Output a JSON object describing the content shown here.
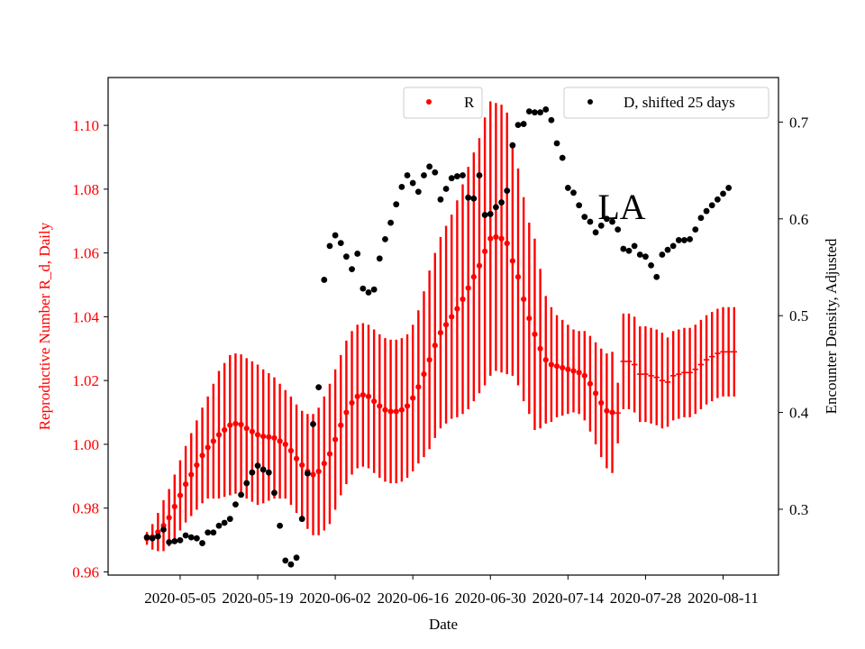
{
  "chart_data": {
    "type": "scatter",
    "xlabel": "Date",
    "ylabel_left": "Reproductive Number R_d, Daily",
    "ylabel_right": "Encounter Density, Adjusted",
    "annotation": "LA",
    "x_ticks": [
      "2020-05-05",
      "2020-05-19",
      "2020-06-02",
      "2020-06-16",
      "2020-06-30",
      "2020-07-14",
      "2020-07-28",
      "2020-08-11"
    ],
    "y_left_ticks": [
      "0.96",
      "0.98",
      "1.00",
      "1.02",
      "1.04",
      "1.06",
      "1.08",
      "1.10"
    ],
    "y_right_ticks": [
      "0.3",
      "0.4",
      "0.5",
      "0.6",
      "0.7"
    ],
    "y_left_range": [
      0.959,
      1.115
    ],
    "y_right_range": [
      0.232,
      0.746
    ],
    "x_range": [
      "2020-04-22",
      "2020-08-21"
    ],
    "grid": false,
    "colors": {
      "r_series": "#ff0000",
      "d_series": "#000000",
      "left_axis": "#ff0000",
      "right_axis": "#000000"
    },
    "legends": [
      {
        "label": "R",
        "color": "#ff0000",
        "placement": "top-center"
      },
      {
        "label": "D, shifted 25 days",
        "color": "#000000",
        "placement": "top-right"
      }
    ],
    "series": [
      {
        "name": "R",
        "axis": "left",
        "x": [
          "2020-04-29",
          "2020-04-30",
          "2020-05-01",
          "2020-05-02",
          "2020-05-03",
          "2020-05-04",
          "2020-05-05",
          "2020-05-06",
          "2020-05-07",
          "2020-05-08",
          "2020-05-09",
          "2020-05-10",
          "2020-05-11",
          "2020-05-12",
          "2020-05-13",
          "2020-05-14",
          "2020-05-15",
          "2020-05-16",
          "2020-05-17",
          "2020-05-18",
          "2020-05-19",
          "2020-05-20",
          "2020-05-21",
          "2020-05-22",
          "2020-05-23",
          "2020-05-24",
          "2020-05-25",
          "2020-05-26",
          "2020-05-27",
          "2020-05-28",
          "2020-05-29",
          "2020-05-30",
          "2020-05-31",
          "2020-06-01",
          "2020-06-02",
          "2020-06-03",
          "2020-06-04",
          "2020-06-05",
          "2020-06-06",
          "2020-06-07",
          "2020-06-08",
          "2020-06-09",
          "2020-06-10",
          "2020-06-11",
          "2020-06-12",
          "2020-06-13",
          "2020-06-14",
          "2020-06-15",
          "2020-06-16",
          "2020-06-17",
          "2020-06-18",
          "2020-06-19",
          "2020-06-20",
          "2020-06-21",
          "2020-06-22",
          "2020-06-23",
          "2020-06-24",
          "2020-06-25",
          "2020-06-26",
          "2020-06-27",
          "2020-06-28",
          "2020-06-29",
          "2020-06-30",
          "2020-07-01",
          "2020-07-02",
          "2020-07-03",
          "2020-07-04",
          "2020-07-05",
          "2020-07-06",
          "2020-07-07",
          "2020-07-08",
          "2020-07-09",
          "2020-07-10",
          "2020-07-11",
          "2020-07-12",
          "2020-07-13",
          "2020-07-14",
          "2020-07-15",
          "2020-07-16",
          "2020-07-17",
          "2020-07-18",
          "2020-07-19",
          "2020-07-20",
          "2020-07-21",
          "2020-07-22",
          "2020-07-23",
          "2020-07-24",
          "2020-07-25",
          "2020-07-26",
          "2020-07-27",
          "2020-07-28",
          "2020-07-29",
          "2020-07-30",
          "2020-07-31",
          "2020-08-01",
          "2020-08-02",
          "2020-08-03",
          "2020-08-04",
          "2020-08-05",
          "2020-08-06",
          "2020-08-07",
          "2020-08-08",
          "2020-08-09",
          "2020-08-10",
          "2020-08-11",
          "2020-08-12",
          "2020-08-13"
        ],
        "y": [
          0.9705,
          0.971,
          0.9725,
          0.9745,
          0.977,
          0.9805,
          0.984,
          0.9875,
          0.9905,
          0.9935,
          0.9965,
          0.999,
          1.001,
          1.003,
          1.0045,
          1.006,
          1.0065,
          1.0062,
          1.005,
          1.004,
          1.003,
          1.0025,
          1.0023,
          1.002,
          1.001,
          1.0,
          0.998,
          0.9955,
          0.9935,
          0.9915,
          0.9905,
          0.9915,
          0.994,
          0.997,
          1.0015,
          1.006,
          1.01,
          1.013,
          1.015,
          1.0155,
          1.015,
          1.0135,
          1.012,
          1.0108,
          1.0103,
          1.0103,
          1.0108,
          1.012,
          1.0145,
          1.018,
          1.022,
          1.0265,
          1.031,
          1.035,
          1.0375,
          1.04,
          1.0425,
          1.0455,
          1.049,
          1.0525,
          1.056,
          1.0605,
          1.0645,
          1.065,
          1.0645,
          1.063,
          1.0575,
          1.0525,
          1.0455,
          1.0395,
          1.0345,
          1.03,
          1.0265,
          1.025,
          1.0245,
          1.024,
          1.0235,
          1.023,
          1.0225,
          1.0215,
          1.019,
          1.016,
          1.013,
          1.0105,
          1.01,
          1.0098,
          1.026,
          1.026,
          1.025,
          1.022,
          1.022,
          1.0215,
          1.021,
          1.02,
          1.0195,
          1.0215,
          1.022,
          1.0225,
          1.0225,
          1.0235,
          1.025,
          1.0265,
          1.0275,
          1.0285,
          1.029,
          1.029,
          1.029
        ],
        "err": [
          0.002,
          0.004,
          0.006,
          0.008,
          0.009,
          0.01,
          0.011,
          0.012,
          0.013,
          0.014,
          0.015,
          0.016,
          0.018,
          0.02,
          0.021,
          0.022,
          0.022,
          0.022,
          0.022,
          0.022,
          0.022,
          0.021,
          0.02,
          0.019,
          0.018,
          0.017,
          0.017,
          0.017,
          0.017,
          0.018,
          0.019,
          0.02,
          0.021,
          0.022,
          0.022,
          0.022,
          0.0225,
          0.0225,
          0.0225,
          0.0225,
          0.0225,
          0.0225,
          0.0225,
          0.0225,
          0.0225,
          0.0225,
          0.0225,
          0.0225,
          0.023,
          0.024,
          0.026,
          0.028,
          0.029,
          0.03,
          0.031,
          0.032,
          0.034,
          0.036,
          0.038,
          0.039,
          0.04,
          0.042,
          0.043,
          0.042,
          0.042,
          0.041,
          0.036,
          0.034,
          0.032,
          0.03,
          0.03,
          0.025,
          0.02,
          0.018,
          0.016,
          0.015,
          0.014,
          0.013,
          0.013,
          0.014,
          0.015,
          0.016,
          0.017,
          0.018,
          0.019,
          0.0095,
          0.015,
          0.015,
          0.015,
          0.015,
          0.015,
          0.015,
          0.015,
          0.015,
          0.014,
          0.014,
          0.014,
          0.014,
          0.014,
          0.014,
          0.014,
          0.014,
          0.014,
          0.014,
          0.014,
          0.014,
          0.014
        ],
        "err_outlined_from_index": 85
      },
      {
        "name": "D, shifted 25 days",
        "axis": "right",
        "x": [
          "2020-04-29",
          "2020-04-30",
          "2020-05-01",
          "2020-05-02",
          "2020-05-03",
          "2020-05-04",
          "2020-05-05",
          "2020-05-06",
          "2020-05-07",
          "2020-05-08",
          "2020-05-09",
          "2020-05-10",
          "2020-05-11",
          "2020-05-12",
          "2020-05-13",
          "2020-05-14",
          "2020-05-15",
          "2020-05-16",
          "2020-05-17",
          "2020-05-18",
          "2020-05-19",
          "2020-05-20",
          "2020-05-21",
          "2020-05-22",
          "2020-05-23",
          "2020-05-24",
          "2020-05-25",
          "2020-05-26",
          "2020-05-27",
          "2020-05-28",
          "2020-05-29",
          "2020-05-30",
          "2020-05-31",
          "2020-06-01",
          "2020-06-02",
          "2020-06-03",
          "2020-06-04",
          "2020-06-05",
          "2020-06-06",
          "2020-06-07",
          "2020-06-08",
          "2020-06-09",
          "2020-06-10",
          "2020-06-11",
          "2020-06-12",
          "2020-06-13",
          "2020-06-14",
          "2020-06-15",
          "2020-06-16",
          "2020-06-17",
          "2020-06-18",
          "2020-06-19",
          "2020-06-20",
          "2020-06-21",
          "2020-06-22",
          "2020-06-23",
          "2020-06-24",
          "2020-06-25",
          "2020-06-26",
          "2020-06-27",
          "2020-06-28",
          "2020-06-29",
          "2020-06-30",
          "2020-07-01",
          "2020-07-02",
          "2020-07-03",
          "2020-07-04",
          "2020-07-05",
          "2020-07-06",
          "2020-07-07",
          "2020-07-08",
          "2020-07-09",
          "2020-07-10",
          "2020-07-11",
          "2020-07-12",
          "2020-07-13",
          "2020-07-14",
          "2020-07-15",
          "2020-07-16",
          "2020-07-17",
          "2020-07-18",
          "2020-07-19",
          "2020-07-20",
          "2020-07-21",
          "2020-07-22",
          "2020-07-23",
          "2020-07-24",
          "2020-07-25",
          "2020-07-26",
          "2020-07-27",
          "2020-07-28",
          "2020-07-29",
          "2020-07-30",
          "2020-07-31",
          "2020-08-01",
          "2020-08-02",
          "2020-08-03",
          "2020-08-04",
          "2020-08-05",
          "2020-08-06",
          "2020-08-07",
          "2020-08-08",
          "2020-08-09",
          "2020-08-10",
          "2020-08-11",
          "2020-08-12"
        ],
        "y": [
          0.271,
          0.27,
          0.272,
          0.279,
          0.266,
          0.267,
          0.268,
          0.273,
          0.271,
          0.27,
          0.265,
          0.276,
          0.276,
          0.283,
          0.286,
          0.29,
          0.305,
          0.315,
          0.327,
          0.338,
          0.345,
          0.341,
          0.338,
          0.317,
          0.283,
          0.247,
          0.243,
          0.25,
          0.29,
          0.337,
          0.388,
          0.426,
          0.537,
          0.572,
          0.583,
          0.575,
          0.561,
          0.548,
          0.564,
          0.528,
          0.524,
          0.527,
          0.559,
          0.579,
          0.596,
          0.615,
          0.633,
          0.645,
          0.637,
          0.628,
          0.645,
          0.654,
          0.648,
          0.62,
          0.631,
          0.642,
          0.644,
          0.645,
          0.622,
          0.621,
          0.645,
          0.604,
          0.605,
          0.612,
          0.617,
          0.629,
          0.676,
          0.697,
          0.698,
          0.711,
          0.71,
          0.71,
          0.713,
          0.702,
          0.678,
          0.663,
          0.632,
          0.627,
          0.614,
          0.602,
          0.597,
          0.586,
          0.593,
          0.6,
          0.597,
          0.589,
          0.569,
          0.567,
          0.572,
          0.563,
          0.561,
          0.552,
          0.54,
          0.563,
          0.568,
          0.572,
          0.578,
          0.578,
          0.579,
          0.589,
          0.601,
          0.608,
          0.614,
          0.62,
          0.626,
          0.632
        ]
      }
    ]
  }
}
